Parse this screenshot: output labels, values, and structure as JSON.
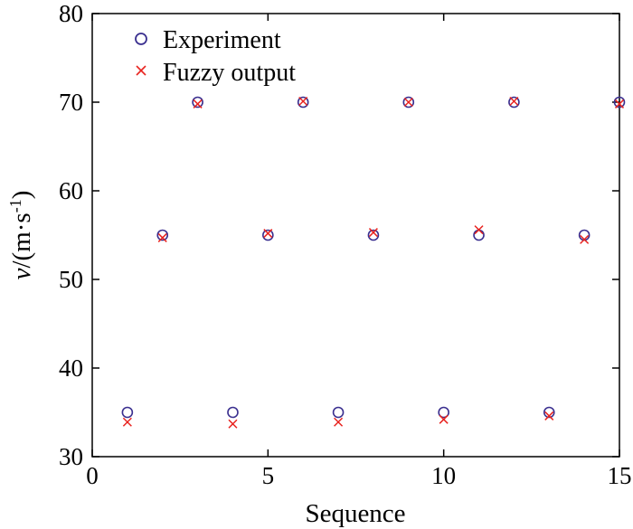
{
  "chart_data": {
    "type": "scatter",
    "xlabel": "Sequence",
    "ylabel": "v/(m·s-1)",
    "ylabel_parts": {
      "var": "v",
      "unit_open": "/(m·s",
      "sup": "-1",
      "unit_close": ")"
    },
    "xlim": [
      0,
      15
    ],
    "ylim": [
      30,
      80
    ],
    "x_ticks": [
      0,
      5,
      10,
      15
    ],
    "y_ticks": [
      30,
      40,
      50,
      60,
      70,
      80
    ],
    "x_tick_labels": [
      "0",
      "5",
      "10",
      "15"
    ],
    "y_tick_labels": [
      "30",
      "40",
      "50",
      "60",
      "70",
      "80"
    ],
    "grid": false,
    "legend_position": "top-left",
    "series": [
      {
        "name": "Experiment",
        "marker": "circle",
        "color": "#3a2f8f",
        "x": [
          1,
          2,
          3,
          4,
          5,
          6,
          7,
          8,
          9,
          10,
          11,
          12,
          13,
          14,
          15
        ],
        "y": [
          35,
          55,
          70,
          35,
          55,
          70,
          35,
          55,
          70,
          35,
          55,
          70,
          35,
          55,
          70
        ]
      },
      {
        "name": "Fuzzy output",
        "marker": "x",
        "color": "#e8231f",
        "x": [
          1,
          2,
          3,
          4,
          5,
          6,
          7,
          8,
          9,
          10,
          11,
          12,
          13,
          14,
          15
        ],
        "y": [
          33.9,
          54.7,
          69.8,
          33.7,
          55.2,
          70.1,
          33.9,
          55.3,
          70.0,
          34.2,
          55.6,
          70.1,
          34.6,
          54.5,
          69.8
        ]
      }
    ]
  }
}
